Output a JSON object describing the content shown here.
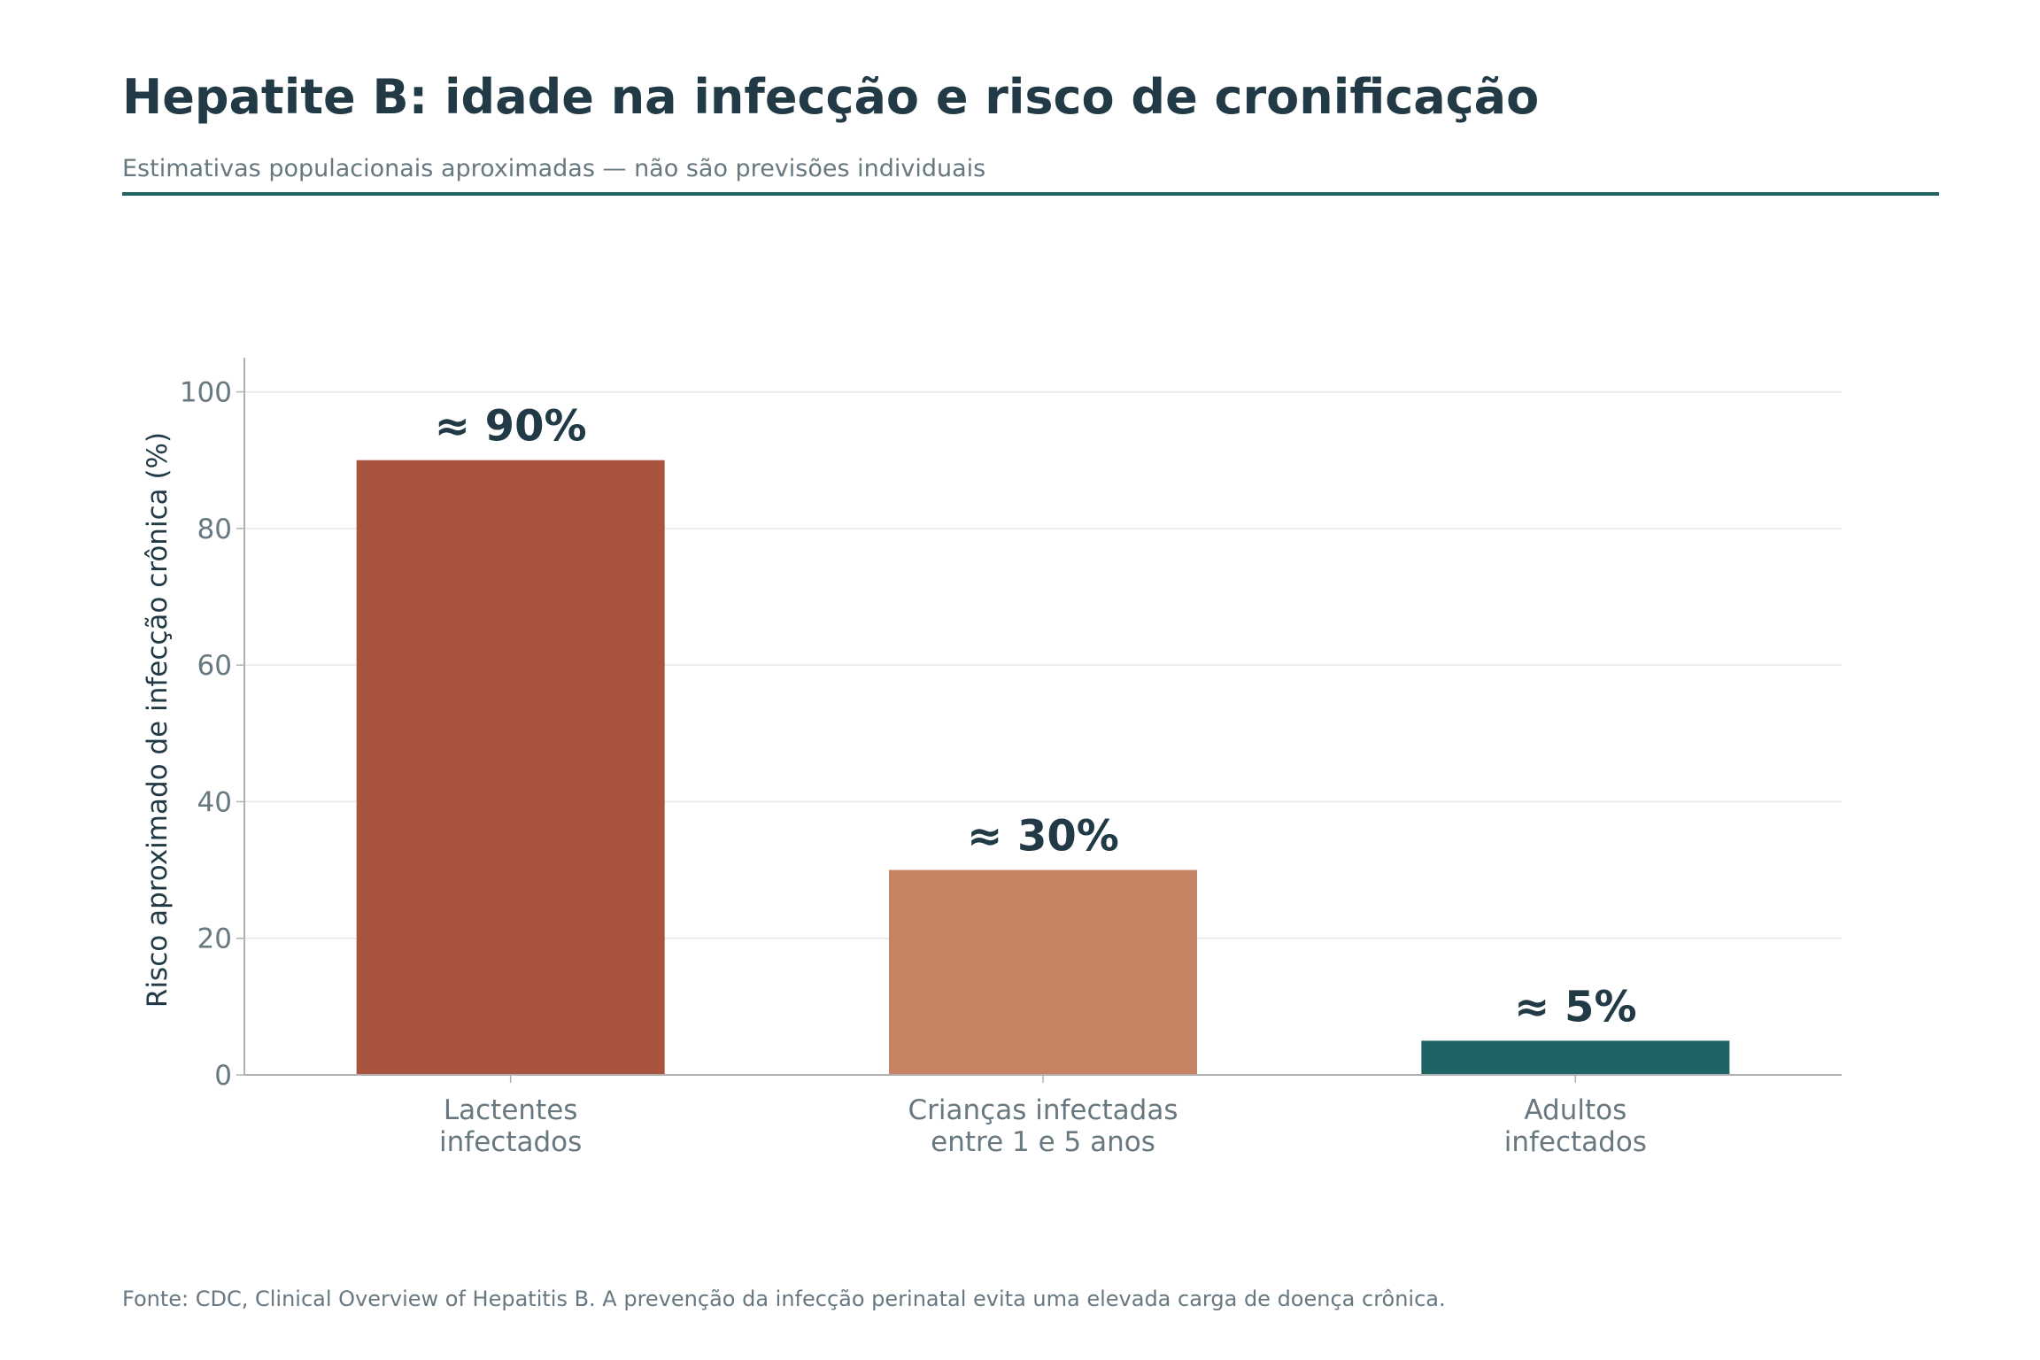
{
  "header": {
    "title": "Hepatite B: idade na infecção e risco de cronificação",
    "subtitle": "Estimativas populacionais aproximadas — não são previsões individuais"
  },
  "footer": {
    "source": "Fonte: CDC, Clinical Overview of Hepatitis B. A prevenção da infecção perinatal evita uma elevada carga de doença crônica."
  },
  "colors": {
    "title": "#213a46",
    "muted": "#687880",
    "accent": "#1e6464",
    "grid": "#e8e8e8",
    "axis": "#b0b0b0"
  },
  "chart_data": {
    "type": "bar",
    "title": "Hepatite B: idade na infecção e risco de cronificação",
    "xlabel": "",
    "ylabel": "Risco aproximado de infecção crônica (%)",
    "ylim": [
      0,
      105
    ],
    "yticks": [
      0,
      20,
      40,
      60,
      80,
      100
    ],
    "grid": true,
    "categories": [
      [
        "Lactentes",
        "infectados"
      ],
      [
        "Crianças infectadas",
        "entre 1 e 5 anos"
      ],
      [
        "Adultos",
        "infectados"
      ]
    ],
    "values": [
      90,
      30,
      5
    ],
    "data_labels": [
      "≈ 90%",
      "≈ 30%",
      "≈ 5%"
    ],
    "bar_colors": [
      "#a9543f",
      "#c68363",
      "#1f6464"
    ]
  }
}
